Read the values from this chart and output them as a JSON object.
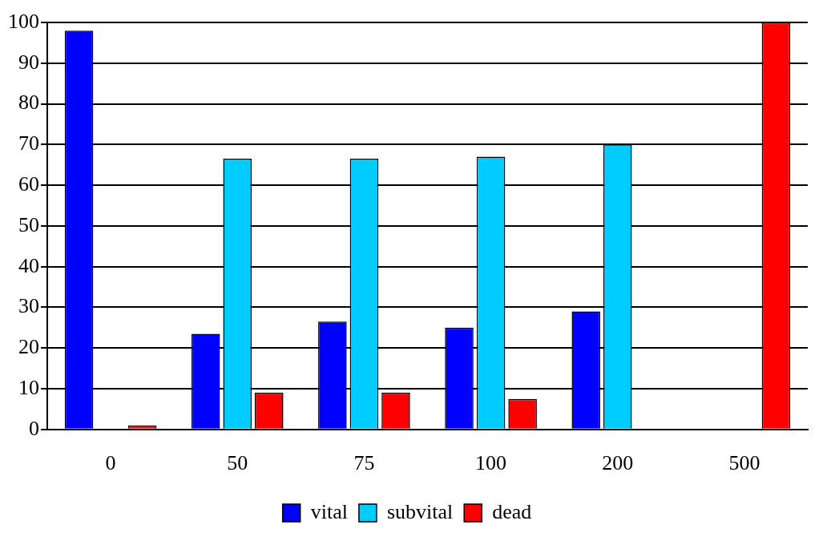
{
  "chart_data": {
    "type": "bar",
    "categories": [
      "0",
      "50",
      "75",
      "100",
      "200",
      "500"
    ],
    "series": [
      {
        "name": "vital",
        "color": "#0000ff",
        "values": [
          98,
          23.5,
          26.5,
          25,
          29,
          0
        ]
      },
      {
        "name": "subvital",
        "color": "#00ccff",
        "values": [
          0,
          66.5,
          66.5,
          67,
          70,
          0
        ]
      },
      {
        "name": "dead",
        "color": "#ff0000",
        "values": [
          1,
          9,
          9,
          7.5,
          0,
          100
        ]
      }
    ],
    "ylim": [
      0,
      100
    ],
    "yticks": [
      0,
      10,
      20,
      30,
      40,
      50,
      60,
      70,
      80,
      90,
      100
    ],
    "grid": "y",
    "legend": "bottom"
  }
}
